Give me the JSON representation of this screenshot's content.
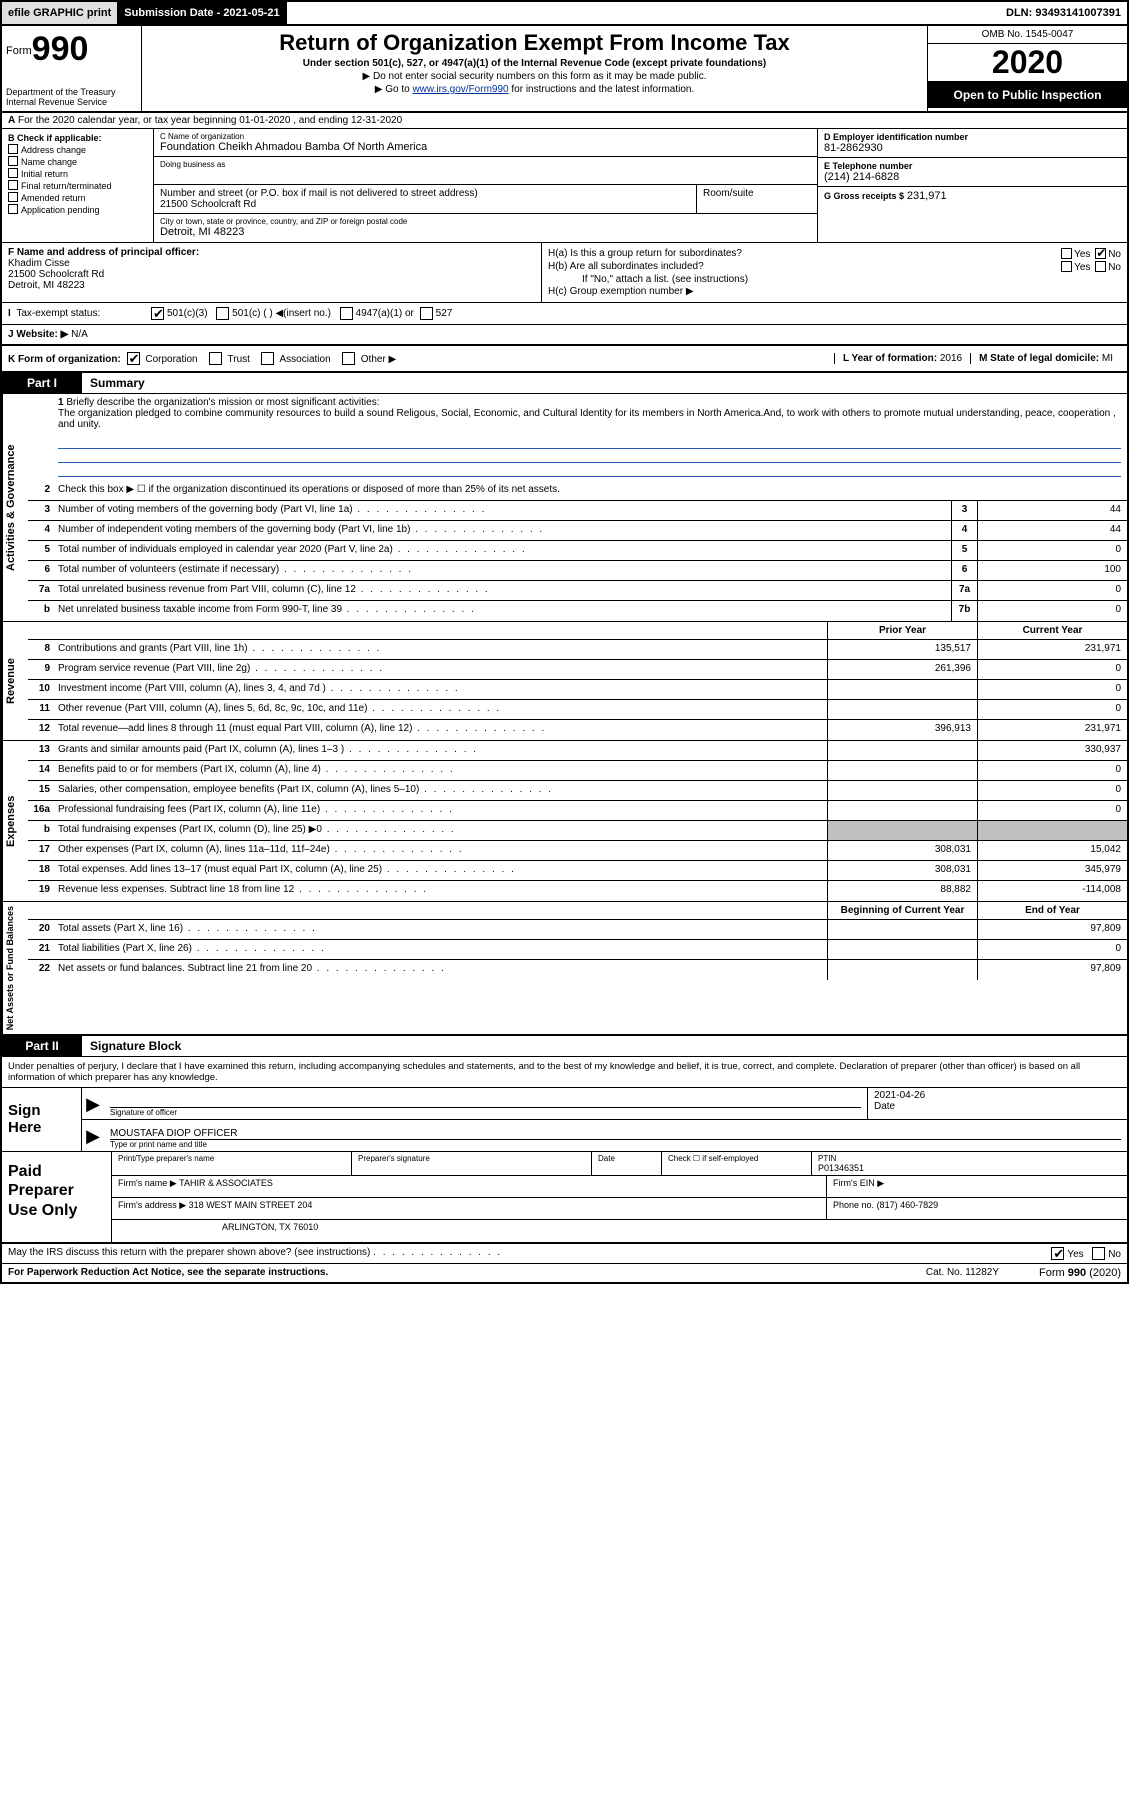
{
  "topbar": {
    "efile": "efile GRAPHIC print",
    "subdate_label": "Submission Date - 2021-05-21",
    "dln": "DLN: 93493141007391"
  },
  "hdr": {
    "form_prefix": "Form",
    "form_no": "990",
    "dept": "Department of the Treasury\nInternal Revenue Service",
    "title": "Return of Organization Exempt From Income Tax",
    "sub": "Under section 501(c), 527, or 4947(a)(1) of the Internal Revenue Code (except private foundations)",
    "sub_note1": "Do not enter social security numbers on this form as it may be made public.",
    "sub_note2_pre": "Go to ",
    "sub_note2_link": "www.irs.gov/Form990",
    "sub_note2_post": " for instructions and the latest information.",
    "omb": "OMB No. 1545-0047",
    "year": "2020",
    "open_pub": "Open to Public Inspection"
  },
  "sec_a": "For the 2020 calendar year, or tax year beginning 01-01-2020    , and ending 12-31-2020",
  "col_b": {
    "label": "B Check if applicable:",
    "items": [
      "Address change",
      "Name change",
      "Initial return",
      "Final return/terminated",
      "Amended return",
      "Application pending"
    ]
  },
  "col_c": {
    "name_lbl": "C Name of organization",
    "name": "Foundation Cheikh Ahmadou Bamba Of North America",
    "dba_lbl": "Doing business as",
    "dba": "",
    "addr_lbl": "Number and street (or P.O. box if mail is not delivered to street address)",
    "room_lbl": "Room/suite",
    "addr": "21500 Schoolcraft Rd",
    "city_lbl": "City or town, state or province, country, and ZIP or foreign postal code",
    "city": "Detroit, MI  48223"
  },
  "col_d": {
    "ein_lbl": "D Employer identification number",
    "ein": "81-2862930",
    "tel_lbl": "E Telephone number",
    "tel": "(214) 214-6828",
    "gross_lbl": "G Gross receipts $",
    "gross": "231,971"
  },
  "sec_f": {
    "lbl": "F  Name and address of principal officer:",
    "name": "Khadim Cisse",
    "addr1": "21500 Schoolcraft Rd",
    "addr2": "Detroit, MI  48223"
  },
  "sec_h": {
    "a_lbl": "H(a)  Is this a group return for subordinates?",
    "b_lbl": "H(b)  Are all subordinates included?",
    "b_note": "If \"No,\" attach a list. (see instructions)",
    "c_lbl": "H(c)  Group exemption number ▶"
  },
  "tax_status": {
    "lbl": "Tax-exempt status:",
    "o1": "501(c)(3)",
    "o2": "501(c) (   ) ◀(insert no.)",
    "o3": "4947(a)(1) or",
    "o4": "527"
  },
  "sec_j": {
    "lbl": "J   Website: ▶",
    "val": "N/A"
  },
  "sec_k": {
    "k": "K Form of organization:",
    "opts": [
      "Corporation",
      "Trust",
      "Association",
      "Other ▶"
    ],
    "l_lbl": "L Year of formation:",
    "l_val": "2016",
    "m_lbl": "M State of legal domicile:",
    "m_val": "MI"
  },
  "part1": {
    "tag": "Part I",
    "title": "Summary"
  },
  "mission": {
    "num": "1",
    "lbl": "Briefly describe the organization's mission or most significant activities:",
    "text": "The organization pledged to combine community resources to build a sound Religous, Social, Economic, and Cultural Identity for its members in North America.And, to work with others to promote mutual understanding, peace, cooperation , and unity."
  },
  "gov_lines": [
    {
      "n": "2",
      "t": "Check this box ▶ ☐  if the organization discontinued its operations or disposed of more than 25% of its net assets.",
      "box": "",
      "v": ""
    },
    {
      "n": "3",
      "t": "Number of voting members of the governing body (Part VI, line 1a)",
      "box": "3",
      "v": "44"
    },
    {
      "n": "4",
      "t": "Number of independent voting members of the governing body (Part VI, line 1b)",
      "box": "4",
      "v": "44"
    },
    {
      "n": "5",
      "t": "Total number of individuals employed in calendar year 2020 (Part V, line 2a)",
      "box": "5",
      "v": "0"
    },
    {
      "n": "6",
      "t": "Total number of volunteers (estimate if necessary)",
      "box": "6",
      "v": "100"
    },
    {
      "n": "7a",
      "t": "Total unrelated business revenue from Part VIII, column (C), line 12",
      "box": "7a",
      "v": "0"
    },
    {
      "n": "b",
      "t": "Net unrelated business taxable income from Form 990-T, line 39",
      "box": "7b",
      "v": "0"
    }
  ],
  "colhdr": {
    "prior": "Prior Year",
    "current": "Current Year"
  },
  "revenue": [
    {
      "n": "8",
      "t": "Contributions and grants (Part VIII, line 1h)",
      "p": "135,517",
      "c": "231,971"
    },
    {
      "n": "9",
      "t": "Program service revenue (Part VIII, line 2g)",
      "p": "261,396",
      "c": "0"
    },
    {
      "n": "10",
      "t": "Investment income (Part VIII, column (A), lines 3, 4, and 7d )",
      "p": "",
      "c": "0"
    },
    {
      "n": "11",
      "t": "Other revenue (Part VIII, column (A), lines 5, 6d, 8c, 9c, 10c, and 11e)",
      "p": "",
      "c": "0"
    },
    {
      "n": "12",
      "t": "Total revenue—add lines 8 through 11 (must equal Part VIII, column (A), line 12)",
      "p": "396,913",
      "c": "231,971"
    }
  ],
  "expenses": [
    {
      "n": "13",
      "t": "Grants and similar amounts paid (Part IX, column (A), lines 1–3 )",
      "p": "",
      "c": "330,937"
    },
    {
      "n": "14",
      "t": "Benefits paid to or for members (Part IX, column (A), line 4)",
      "p": "",
      "c": "0"
    },
    {
      "n": "15",
      "t": "Salaries, other compensation, employee benefits (Part IX, column (A), lines 5–10)",
      "p": "",
      "c": "0"
    },
    {
      "n": "16a",
      "t": "Professional fundraising fees (Part IX, column (A), line 11e)",
      "p": "",
      "c": "0"
    },
    {
      "n": "b",
      "t": "Total fundraising expenses (Part IX, column (D), line 25) ▶0",
      "p": "shade",
      "c": "shade"
    },
    {
      "n": "17",
      "t": "Other expenses (Part IX, column (A), lines 11a–11d, 11f–24e)",
      "p": "308,031",
      "c": "15,042"
    },
    {
      "n": "18",
      "t": "Total expenses. Add lines 13–17 (must equal Part IX, column (A), line 25)",
      "p": "308,031",
      "c": "345,979"
    },
    {
      "n": "19",
      "t": "Revenue less expenses. Subtract line 18 from line 12",
      "p": "88,882",
      "c": "-114,008"
    }
  ],
  "colhdr2": {
    "begin": "Beginning of Current Year",
    "end": "End of Year"
  },
  "netassets": [
    {
      "n": "20",
      "t": "Total assets (Part X, line 16)",
      "p": "",
      "c": "97,809"
    },
    {
      "n": "21",
      "t": "Total liabilities (Part X, line 26)",
      "p": "",
      "c": "0"
    },
    {
      "n": "22",
      "t": "Net assets or fund balances. Subtract line 21 from line 20",
      "p": "",
      "c": "97,809"
    }
  ],
  "part2": {
    "tag": "Part II",
    "title": "Signature Block"
  },
  "decl": "Under penalties of perjury, I declare that I have examined this return, including accompanying schedules and statements, and to the best of my knowledge and belief, it is true, correct, and complete. Declaration of preparer (other than officer) is based on all information of which preparer has any knowledge.",
  "sign": {
    "left": "Sign Here",
    "sig_lbl": "Signature of officer",
    "date": "2021-04-26",
    "date_lbl": "Date",
    "name": "MOUSTAFA DIOP OFFICER",
    "name_lbl": "Type or print name and title"
  },
  "prep": {
    "left": "Paid Preparer Use Only",
    "h1": "Print/Type preparer's name",
    "h2": "Preparer's signature",
    "h3": "Date",
    "h4_pre": "Check ☐ if self-employed",
    "h5": "PTIN",
    "ptin": "P01346351",
    "firm_lbl": "Firm's name   ▶",
    "firm": "TAHIR & ASSOCIATES",
    "ein_lbl": "Firm's EIN ▶",
    "addr_lbl": "Firm's address ▶",
    "addr1": "318 WEST MAIN STREET 204",
    "addr2": "ARLINGTON, TX  76010",
    "phone_lbl": "Phone no.",
    "phone": "(817) 460-7829"
  },
  "discuss": "May the IRS discuss this return with the preparer shown above? (see instructions)",
  "footer": {
    "left": "For Paperwork Reduction Act Notice, see the separate instructions.",
    "mid": "Cat. No. 11282Y",
    "right": "Form 990 (2020)"
  }
}
